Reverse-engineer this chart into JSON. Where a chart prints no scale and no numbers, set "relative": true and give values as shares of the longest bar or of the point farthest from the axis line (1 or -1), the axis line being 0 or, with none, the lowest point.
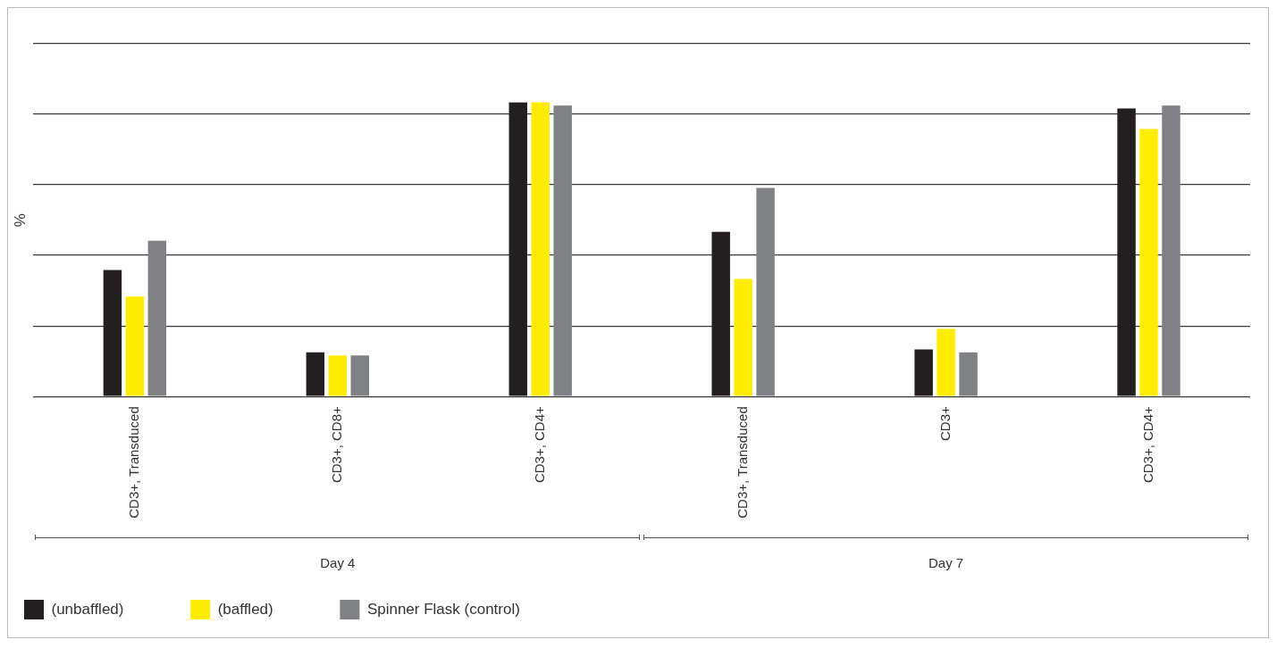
{
  "chart_data": {
    "type": "bar",
    "ylabel": "%",
    "relative": true,
    "grid": "y",
    "tick_labels": "x",
    "legend": "bottom left",
    "categories": [
      "CD3+, Transduced",
      "CD3+, CD8+",
      "CD3+, CD4+",
      "CD3+, Transduced",
      "CD3+",
      "CD3+, CD4+"
    ],
    "annotations": [
      "Day 4",
      "Day 7"
    ],
    "series": [
      {
        "name": "(unbaffled)",
        "color": "#231f20",
        "values": [
          0.43,
          0.15,
          1,
          0.56,
          0.16,
          0.98
        ]
      },
      {
        "name": "(baffled)",
        "color": "#ffed00",
        "values": [
          0.34,
          0.14,
          1,
          0.4,
          0.23,
          0.91
        ]
      },
      {
        "name": "Spinner Flask (control)",
        "color": "#808184",
        "values": [
          0.53,
          0.14,
          0.99,
          0.71,
          0.15,
          0.99
        ]
      }
    ]
  }
}
